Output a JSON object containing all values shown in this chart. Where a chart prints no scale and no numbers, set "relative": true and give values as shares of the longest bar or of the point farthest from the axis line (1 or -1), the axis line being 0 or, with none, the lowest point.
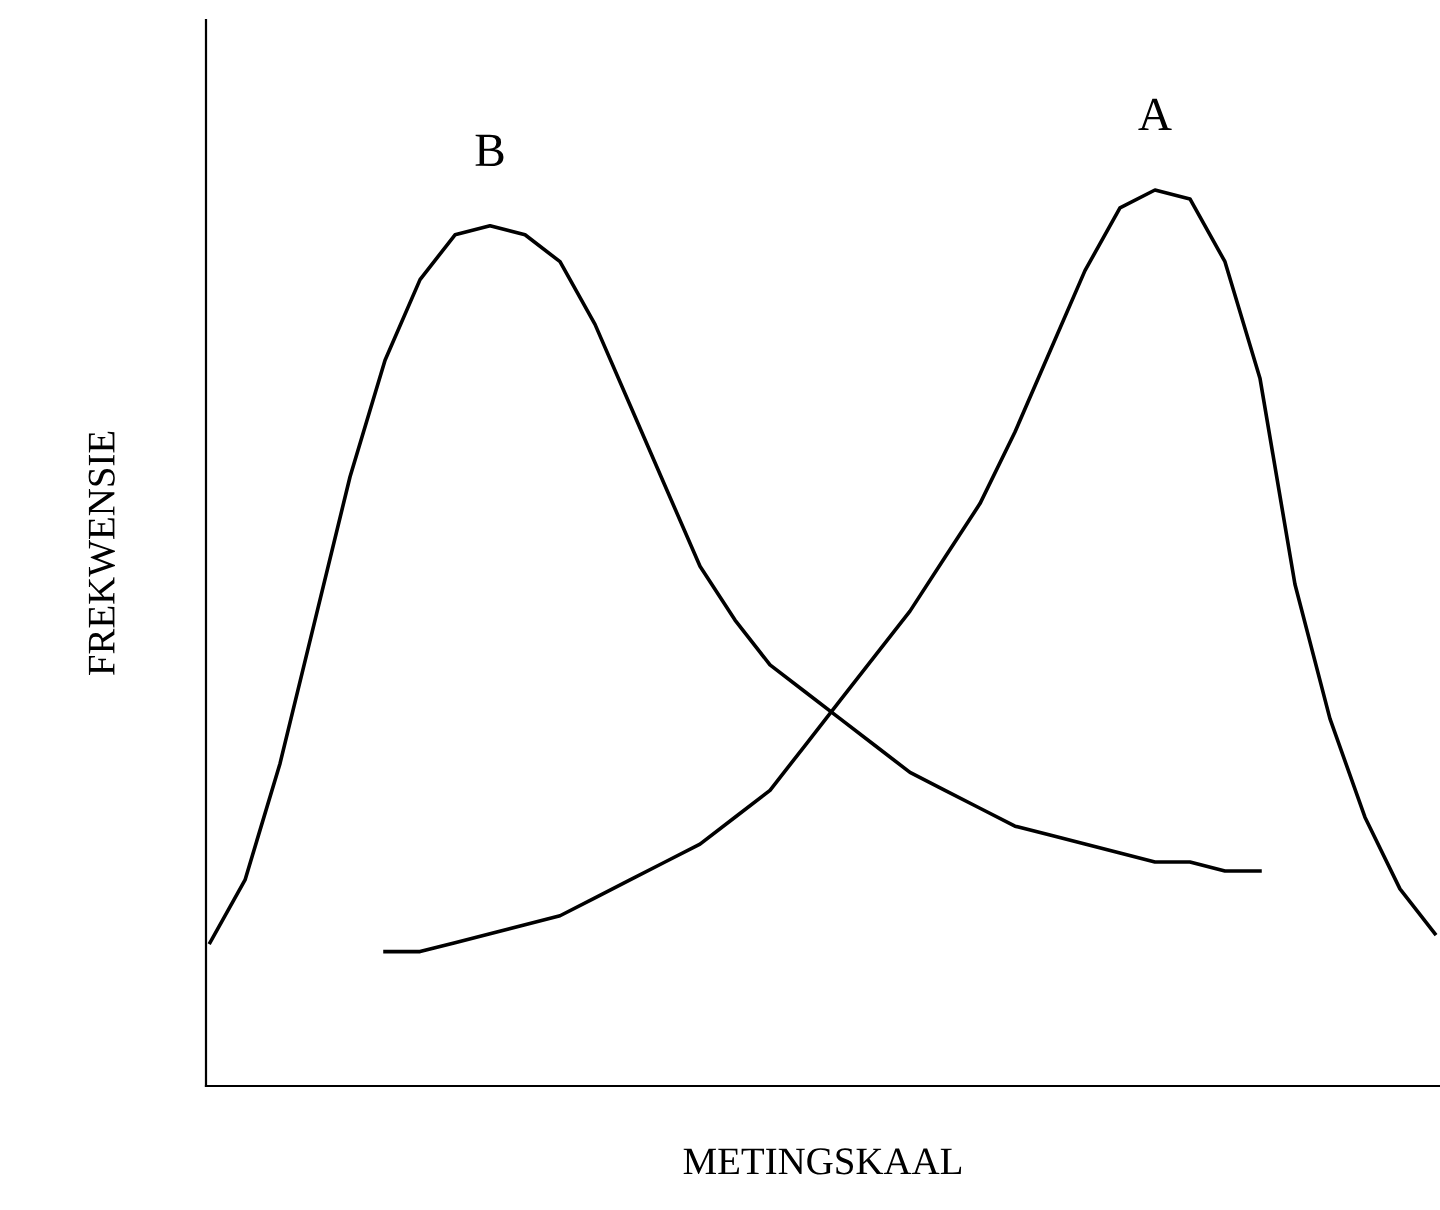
{
  "chart_data": {
    "type": "line",
    "relative": true,
    "xlabel": "METINGSKAAL",
    "ylabel": "FREKWENSIE",
    "legend": false,
    "marker": "none",
    "line_style": "solid",
    "grid": false,
    "categories": [
      null,
      null,
      null,
      null,
      null,
      null,
      null,
      null,
      null,
      null,
      null,
      null,
      null,
      null,
      null,
      null,
      null,
      null,
      null,
      null,
      null,
      null,
      null,
      null,
      null,
      null,
      null,
      null,
      null,
      null,
      null,
      null,
      null,
      null,
      null,
      null
    ],
    "series": [
      {
        "name": "B",
        "color": "#000000",
        "values": [
          0.16,
          0.23,
          0.36,
          0.52,
          0.68,
          0.81,
          0.9,
          0.95,
          0.96,
          0.95,
          0.92,
          0.85,
          0.76,
          0.67,
          0.58,
          0.52,
          0.47,
          0.44,
          0.41,
          0.38,
          0.35,
          0.33,
          0.31,
          0.29,
          0.28,
          0.27,
          0.26,
          0.25,
          0.25,
          0.24,
          0.24,
          null,
          null,
          null,
          null,
          null
        ]
      },
      {
        "name": "A",
        "color": "#000000",
        "values": [
          null,
          null,
          null,
          null,
          null,
          0.15,
          0.15,
          0.16,
          0.17,
          0.18,
          0.19,
          0.21,
          0.23,
          0.25,
          0.27,
          0.3,
          0.33,
          0.38,
          0.43,
          0.48,
          0.53,
          0.59,
          0.65,
          0.73,
          0.82,
          0.91,
          0.98,
          1.0,
          0.99,
          0.92,
          0.79,
          0.56,
          0.41,
          0.3,
          0.22,
          0.17
        ]
      }
    ]
  }
}
